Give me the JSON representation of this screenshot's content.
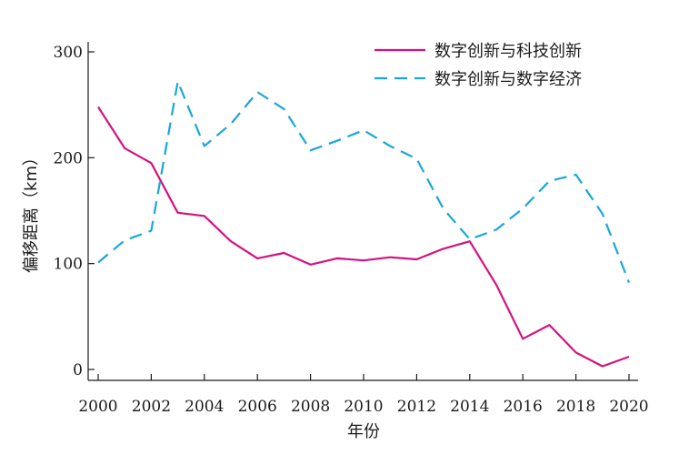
{
  "chart_data": {
    "type": "line",
    "xlabel": "年份",
    "ylabel": "偏移距离（km）",
    "xlim": [
      2000,
      2020
    ],
    "ylim": [
      0,
      300
    ],
    "xticks": [
      "2000",
      "2002",
      "2004",
      "2006",
      "2008",
      "2010",
      "2012",
      "2014",
      "2016",
      "2018",
      "2020"
    ],
    "yticks": [
      "0",
      "100",
      "200",
      "300"
    ],
    "legend_position": "top-right",
    "grid": false,
    "x": [
      2000,
      2001,
      2002,
      2003,
      2004,
      2005,
      2006,
      2007,
      2008,
      2009,
      2010,
      2011,
      2012,
      2013,
      2014,
      2015,
      2016,
      2017,
      2018,
      2019,
      2020
    ],
    "series": [
      {
        "name": "数字创新与科技创新",
        "color": "#d4127e",
        "dash": "solid",
        "values": [
          248,
          209,
          195,
          148,
          145,
          121,
          105,
          110,
          99,
          105,
          103,
          106,
          104,
          114,
          121,
          80,
          29,
          42,
          16,
          3,
          12
        ]
      },
      {
        "name": "数字创新与数字经济",
        "color": "#1ba6d9",
        "dash": "dashed",
        "values": [
          101,
          122,
          131,
          272,
          211,
          232,
          262,
          246,
          207,
          216,
          226,
          211,
          199,
          152,
          123,
          132,
          152,
          178,
          184,
          147,
          82
        ]
      }
    ]
  }
}
